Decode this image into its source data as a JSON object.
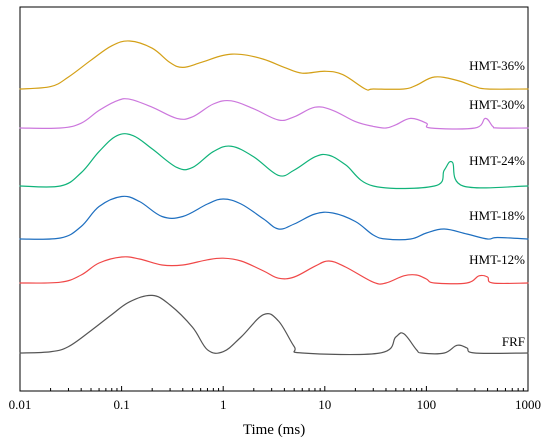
{
  "chart_data": {
    "type": "line",
    "xlabel": "Time (ms)",
    "ylabel": "",
    "xscale": "log",
    "xlim": [
      0.01,
      1000
    ],
    "x_ticks": [
      0.01,
      0.1,
      1,
      10,
      100,
      1000
    ],
    "x_tick_labels": [
      "0.01",
      "0.1",
      "1",
      "10",
      "100",
      "1000"
    ],
    "y_ticks_visible": false,
    "grid": false,
    "legend": "inline labels at right end of each curve",
    "series": [
      {
        "name": "HMT-36%",
        "color": "#d4a017",
        "points": [
          [
            0.01,
            0
          ],
          [
            0.02,
            0.05
          ],
          [
            0.03,
            0.25
          ],
          [
            0.05,
            0.6
          ],
          [
            0.08,
            0.9
          ],
          [
            0.12,
            1.0
          ],
          [
            0.2,
            0.85
          ],
          [
            0.3,
            0.55
          ],
          [
            0.4,
            0.45
          ],
          [
            0.6,
            0.55
          ],
          [
            1,
            0.7
          ],
          [
            1.5,
            0.72
          ],
          [
            2.5,
            0.62
          ],
          [
            4,
            0.45
          ],
          [
            6,
            0.33
          ],
          [
            10,
            0.37
          ],
          [
            15,
            0.3
          ],
          [
            25,
            0
          ],
          [
            30,
            0
          ],
          [
            60,
            0
          ],
          [
            80,
            0.08
          ],
          [
            120,
            0.25
          ],
          [
            200,
            0.18
          ],
          [
            300,
            0.05
          ],
          [
            400,
            0
          ],
          [
            1000,
            0
          ]
        ]
      },
      {
        "name": "HMT-30%",
        "color": "#cc77dd",
        "points": [
          [
            0.01,
            0
          ],
          [
            0.025,
            0
          ],
          [
            0.04,
            0.15
          ],
          [
            0.06,
            0.55
          ],
          [
            0.09,
            0.85
          ],
          [
            0.12,
            0.9
          ],
          [
            0.2,
            0.65
          ],
          [
            0.35,
            0.3
          ],
          [
            0.5,
            0.35
          ],
          [
            0.8,
            0.75
          ],
          [
            1.2,
            0.85
          ],
          [
            2,
            0.6
          ],
          [
            3.5,
            0.25
          ],
          [
            5,
            0.35
          ],
          [
            8,
            0.65
          ],
          [
            12,
            0.55
          ],
          [
            20,
            0.2
          ],
          [
            30,
            0.05
          ],
          [
            40,
            0
          ],
          [
            50,
            0.1
          ],
          [
            70,
            0.3
          ],
          [
            100,
            0.15
          ],
          [
            110,
            0
          ],
          [
            300,
            0
          ],
          [
            380,
            0.3
          ],
          [
            450,
            0.05
          ],
          [
            500,
            0
          ],
          [
            1000,
            0
          ]
        ]
      },
      {
        "name": "HMT-24%",
        "color": "#10b37a",
        "points": [
          [
            0.01,
            0
          ],
          [
            0.025,
            0
          ],
          [
            0.04,
            0.25
          ],
          [
            0.06,
            0.65
          ],
          [
            0.09,
            0.95
          ],
          [
            0.13,
            0.95
          ],
          [
            0.2,
            0.7
          ],
          [
            0.35,
            0.35
          ],
          [
            0.5,
            0.35
          ],
          [
            0.8,
            0.65
          ],
          [
            1.2,
            0.75
          ],
          [
            2,
            0.55
          ],
          [
            3.5,
            0.2
          ],
          [
            5,
            0.3
          ],
          [
            8,
            0.55
          ],
          [
            11,
            0.58
          ],
          [
            16,
            0.4
          ],
          [
            30,
            0
          ],
          [
            120,
            0
          ],
          [
            150,
            0.3
          ],
          [
            180,
            0.45
          ],
          [
            230,
            0
          ],
          [
            1000,
            0
          ]
        ]
      },
      {
        "name": "HMT-18%",
        "color": "#1e6fc0",
        "points": [
          [
            0.01,
            0
          ],
          [
            0.025,
            0.02
          ],
          [
            0.04,
            0.25
          ],
          [
            0.06,
            0.65
          ],
          [
            0.1,
            0.85
          ],
          [
            0.15,
            0.75
          ],
          [
            0.25,
            0.45
          ],
          [
            0.4,
            0.45
          ],
          [
            0.7,
            0.7
          ],
          [
            1,
            0.8
          ],
          [
            1.5,
            0.7
          ],
          [
            2.5,
            0.4
          ],
          [
            3.5,
            0.2
          ],
          [
            5,
            0.3
          ],
          [
            8,
            0.5
          ],
          [
            12,
            0.52
          ],
          [
            20,
            0.35
          ],
          [
            30,
            0.08
          ],
          [
            40,
            0
          ],
          [
            70,
            0
          ],
          [
            100,
            0.12
          ],
          [
            150,
            0.2
          ],
          [
            250,
            0.1
          ],
          [
            400,
            0
          ],
          [
            500,
            0.03
          ],
          [
            1000,
            0
          ]
        ]
      },
      {
        "name": "HMT-12%",
        "color": "#f04848",
        "points": [
          [
            0.01,
            0
          ],
          [
            0.025,
            0.02
          ],
          [
            0.04,
            0.2
          ],
          [
            0.06,
            0.5
          ],
          [
            0.1,
            0.65
          ],
          [
            0.15,
            0.6
          ],
          [
            0.25,
            0.45
          ],
          [
            0.4,
            0.45
          ],
          [
            0.7,
            0.58
          ],
          [
            1,
            0.62
          ],
          [
            1.5,
            0.55
          ],
          [
            2.5,
            0.3
          ],
          [
            3.5,
            0.12
          ],
          [
            5,
            0.15
          ],
          [
            8,
            0.42
          ],
          [
            11,
            0.55
          ],
          [
            16,
            0.4
          ],
          [
            30,
            0.02
          ],
          [
            40,
            0
          ],
          [
            60,
            0.18
          ],
          [
            80,
            0.2
          ],
          [
            100,
            0.1
          ],
          [
            120,
            0
          ],
          [
            250,
            0
          ],
          [
            330,
            0.18
          ],
          [
            400,
            0.15
          ],
          [
            450,
            0
          ],
          [
            1000,
            0
          ]
        ]
      },
      {
        "name": "FRF",
        "color": "#555555",
        "points": [
          [
            0.01,
            0
          ],
          [
            0.02,
            0.02
          ],
          [
            0.03,
            0.1
          ],
          [
            0.05,
            0.35
          ],
          [
            0.08,
            0.6
          ],
          [
            0.12,
            0.8
          ],
          [
            0.2,
            0.9
          ],
          [
            0.3,
            0.75
          ],
          [
            0.5,
            0.4
          ],
          [
            0.7,
            0.05
          ],
          [
            1,
            0.02
          ],
          [
            1.5,
            0.25
          ],
          [
            2.5,
            0.6
          ],
          [
            3.5,
            0.5
          ],
          [
            5,
            0.1
          ],
          [
            6,
            0
          ],
          [
            35,
            0
          ],
          [
            50,
            0.25
          ],
          [
            60,
            0.3
          ],
          [
            80,
            0.05
          ],
          [
            90,
            0
          ],
          [
            150,
            0
          ],
          [
            200,
            0.12
          ],
          [
            250,
            0.08
          ],
          [
            300,
            0
          ],
          [
            1000,
            0
          ]
        ]
      }
    ]
  }
}
